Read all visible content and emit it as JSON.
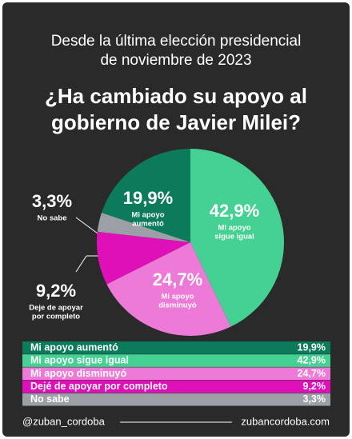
{
  "chart_data": {
    "type": "pie",
    "title": [
      "Desde la última elección presidencial",
      "de noviembre de 2023"
    ],
    "subtitle": [
      "¿Ha cambiado su apoyo al",
      "gobierno de Javier Milei?"
    ],
    "categories": [
      "Mi apoyo aumentó",
      "Mi apoyo sigue igual",
      "Mi apoyo disminuyó",
      "Dejé de apoyar por completo",
      "No sabe"
    ],
    "values": [
      19.9,
      42.9,
      24.7,
      9.2,
      3.3
    ],
    "value_labels": [
      "19,9%",
      "42,9%",
      "24,7%",
      "9,2%",
      "3,3%"
    ],
    "slice_labels": [
      [
        "Mi apoyo",
        "aumentó"
      ],
      [
        "Mi apoyo",
        "sigue igual"
      ],
      [
        "Mi apoyo",
        "disminuyó"
      ],
      [
        "Deje de apoyar",
        "por completo"
      ],
      [
        "No sabe"
      ]
    ],
    "colors": [
      "#0b7b5b",
      "#45d193",
      "#ee7ad7",
      "#e010b8",
      "#9b9fa6"
    ],
    "footer": [
      "@zuban_cordoba",
      "zubancordoba.com"
    ]
  }
}
